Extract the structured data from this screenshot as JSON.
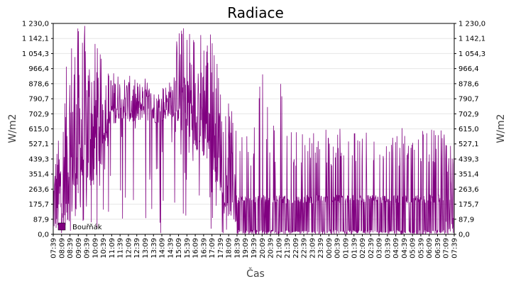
{
  "chart_data": {
    "type": "line",
    "title": "Radiace",
    "xlabel": "Čas",
    "ylabel_left": "W/m2",
    "ylabel_right": "W/m2",
    "y_ticks": [
      "0,0",
      "87,9",
      "175,7",
      "263,6",
      "351,4",
      "439,3",
      "527,1",
      "615,0",
      "702,9",
      "790,7",
      "878,6",
      "966,4",
      "1 054,3",
      "1 142,1",
      "1 230,0"
    ],
    "ylim": [
      0,
      1230
    ],
    "x_ticks": [
      "07:39",
      "08:09",
      "08:39",
      "09:09",
      "09:39",
      "10:09",
      "10:39",
      "11:09",
      "11:39",
      "12:09",
      "12:39",
      "13:09",
      "13:39",
      "14:09",
      "14:39",
      "15:09",
      "15:39",
      "16:09",
      "16:39",
      "17:09",
      "17:39",
      "18:09",
      "18:39",
      "19:09",
      "19:39",
      "20:09",
      "20:39",
      "21:09",
      "21:39",
      "22:09",
      "22:39",
      "23:09",
      "23:39",
      "00:09",
      "00:39",
      "01:09",
      "01:39",
      "02:09",
      "02:39",
      "03:09",
      "03:39",
      "04:09",
      "04:39",
      "05:09",
      "05:39",
      "06:09",
      "06:39",
      "07:09",
      "07:39"
    ],
    "grid": true,
    "legend_position": "bottom-left",
    "series": [
      {
        "name": "Bouřňák",
        "color": "#800080",
        "envelope": {
          "x_index": [
            0,
            1,
            2,
            3,
            4,
            5,
            6,
            7,
            8,
            9,
            10,
            11,
            12,
            13,
            14,
            15,
            16,
            17,
            18,
            19,
            20,
            21,
            22,
            23,
            24,
            25,
            26,
            27,
            28,
            29,
            30,
            31,
            32,
            33,
            34,
            35,
            36,
            37,
            38,
            39,
            40,
            41,
            42,
            43,
            44,
            45,
            46,
            47,
            48
          ],
          "base": [
            20,
            30,
            80,
            120,
            250,
            300,
            520,
            620,
            680,
            660,
            640,
            700,
            650,
            650,
            700,
            650,
            520,
            500,
            450,
            400,
            250,
            120,
            40,
            10,
            5,
            5,
            5,
            5,
            5,
            5,
            5,
            5,
            5,
            5,
            5,
            5,
            5,
            5,
            5,
            5,
            5,
            5,
            5,
            5,
            5,
            5,
            5,
            5,
            30
          ],
          "peak": [
            440,
            650,
            1230,
            1230,
            1230,
            1150,
            1000,
            960,
            950,
            930,
            900,
            920,
            850,
            880,
            900,
            1230,
            1230,
            1230,
            1230,
            1230,
            900,
            780,
            620,
            610,
            620,
            1150,
            620,
            1050,
            620,
            620,
            620,
            620,
            620,
            620,
            620,
            620,
            620,
            620,
            620,
            620,
            620,
            620,
            620,
            620,
            620,
            620,
            620,
            620,
            440
          ],
          "floor_night": [
            0,
            0,
            0,
            0,
            0,
            0,
            0,
            0,
            0,
            0,
            0,
            0,
            0,
            0,
            0,
            0,
            0,
            0,
            0,
            0,
            0,
            0,
            0,
            0,
            0,
            0,
            0,
            0,
            0,
            0,
            0,
            0,
            0,
            0,
            0,
            0,
            0,
            0,
            0,
            0,
            0,
            0,
            0,
            0,
            0,
            0,
            0,
            0,
            0
          ]
        }
      }
    ]
  }
}
